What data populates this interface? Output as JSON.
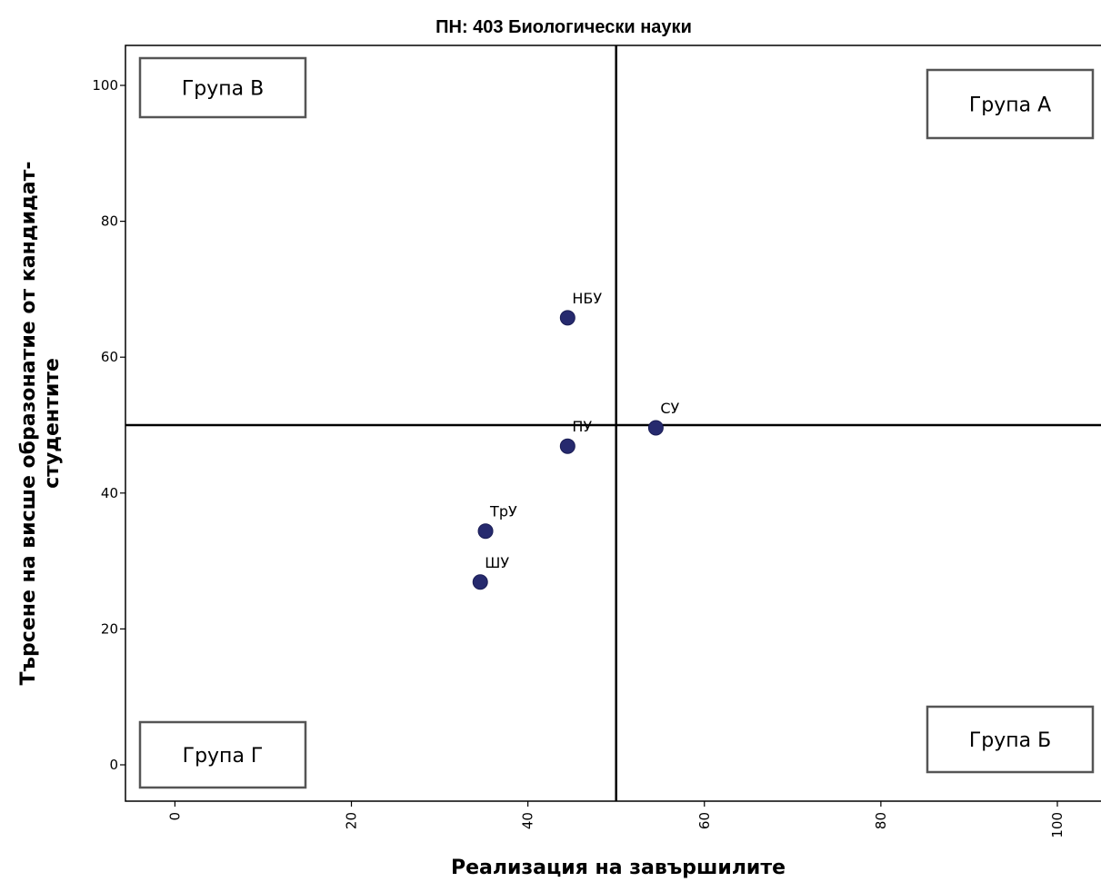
{
  "chart_data": {
    "type": "scatter",
    "title": "ПН: 403 Биологически науки",
    "xlabel": "Реализация на завършилите",
    "ylabel_line1": "Търсене на висше образонатие от кандидат-",
    "ylabel_line2": "студентите",
    "xlim": [
      -5.5,
      105
    ],
    "ylim": [
      -5.5,
      105.5
    ],
    "x_ticks": [
      0,
      20,
      40,
      60,
      80,
      100
    ],
    "y_ticks": [
      0,
      20,
      40,
      60,
      80,
      100
    ],
    "grid": false,
    "reference_lines": {
      "x": 50,
      "y": 50
    },
    "point_color": "#262a6e",
    "points": [
      {
        "label": "НБУ",
        "x": 44.5,
        "y": 65.8
      },
      {
        "label": "СУ",
        "x": 54.5,
        "y": 49.6
      },
      {
        "label": "ПУ",
        "x": 44.5,
        "y": 46.9
      },
      {
        "label": "ТрУ",
        "x": 35.2,
        "y": 34.4
      },
      {
        "label": "ШУ",
        "x": 34.6,
        "y": 26.9
      }
    ],
    "groups": [
      {
        "key": "b",
        "label": "Група В",
        "position": "top-left"
      },
      {
        "key": "a",
        "label": "Група А",
        "position": "top-right"
      },
      {
        "key": "g",
        "label": "Група Г",
        "position": "bottom-left"
      },
      {
        "key": "v",
        "label": "Група Б",
        "position": "bottom-right"
      }
    ]
  }
}
